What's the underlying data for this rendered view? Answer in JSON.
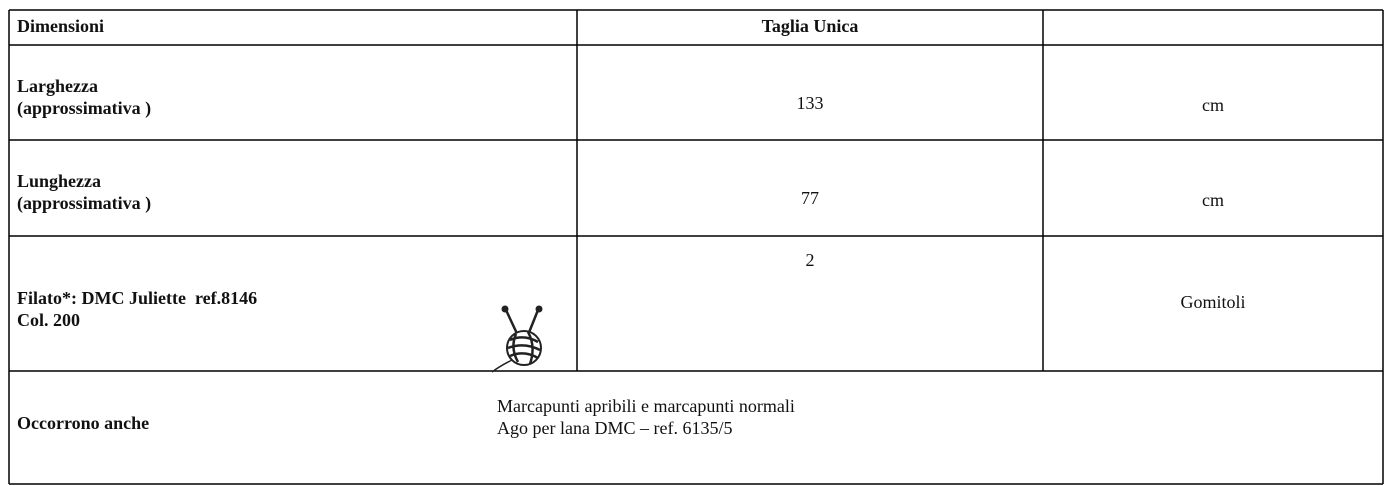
{
  "table": {
    "header": [
      "Dimensioni",
      "Taglia Unica"
    ],
    "rows": [
      {
        "label": [
          "Larghezza",
          "(approssimativa )"
        ],
        "value": 133,
        "unit": "cm"
      },
      {
        "label": [
          "Lunghezza",
          "(approssimativa )"
        ],
        "value": 77,
        "unit": "cm"
      },
      {
        "label": [
          "Filato*: DMC Juliette  ref.8146",
          "Col. 200"
        ],
        "value": 2,
        "unit": "Gomitoli"
      }
    ],
    "extra": {
      "label": "Occorrono anche",
      "notes": [
        "Marcapunti apribili e marcapunti normali",
        "Ago per lana DMC – ref. 6135/5"
      ]
    }
  }
}
